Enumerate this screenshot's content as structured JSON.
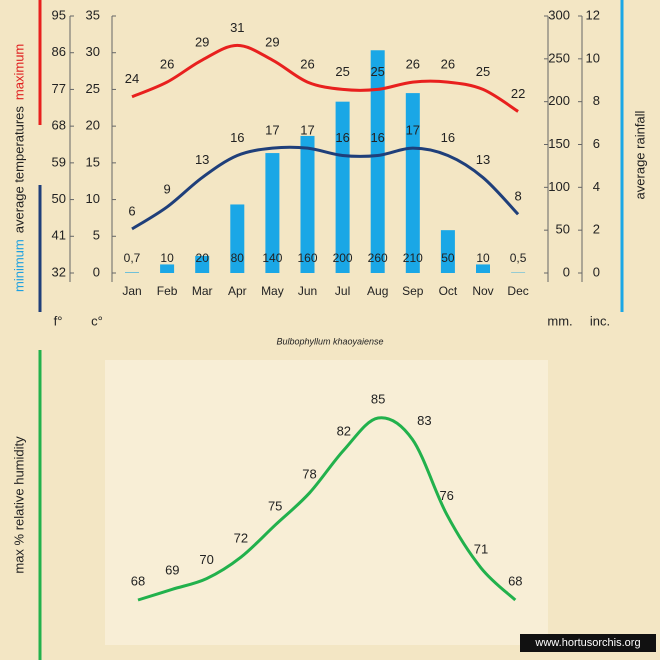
{
  "chart_data": [
    {
      "type": "combo",
      "title": "Bulbophyllum khaoyaiense",
      "categories": [
        "Jan",
        "Feb",
        "Mar",
        "Apr",
        "May",
        "Jun",
        "Jul",
        "Aug",
        "Sep",
        "Oct",
        "Nov",
        "Dec"
      ],
      "ylabel_parts": [
        {
          "text": "minimum",
          "color": "#1ea0e0"
        },
        {
          "text": "average temperatures",
          "color": "#222222"
        },
        {
          "text": "maximum",
          "color": "#e02020"
        }
      ],
      "y2label": "average rainfall",
      "y_unit": "c°",
      "y_alt_unit": "f°",
      "y2_unit": "mm.",
      "y2_alt_unit": "inc.",
      "ylim": [
        0,
        35
      ],
      "yticks": [
        0,
        5,
        10,
        15,
        20,
        25,
        30,
        35
      ],
      "ylim_alt": [
        32,
        95
      ],
      "yticks_alt": [
        32,
        41,
        50,
        59,
        68,
        77,
        86,
        95
      ],
      "y2lim": [
        0,
        300
      ],
      "y2ticks": [
        0,
        50,
        100,
        150,
        200,
        250,
        300
      ],
      "y2lim_alt": [
        0,
        12
      ],
      "y2ticks_alt": [
        0,
        2,
        4,
        6,
        8,
        10,
        12
      ],
      "series": [
        {
          "name": "average rainfall",
          "type": "bar",
          "axis": "y2",
          "color": "#1aa7e6",
          "values": [
            0.7,
            10,
            20,
            80,
            140,
            160,
            200,
            260,
            210,
            50,
            10,
            0.5
          ],
          "value_labels": [
            "0,7",
            "10",
            "20",
            "80",
            "140",
            "160",
            "200",
            "260",
            "210",
            "50",
            "10",
            "0,5"
          ]
        },
        {
          "name": "maximum",
          "type": "line",
          "color": "#e8201e",
          "values": [
            24,
            26,
            29,
            31,
            29,
            26,
            25,
            25,
            26,
            26,
            25,
            22
          ]
        },
        {
          "name": "minimum",
          "type": "line",
          "color": "#1f3f7a",
          "values": [
            6,
            9,
            13,
            16,
            17,
            17,
            16,
            16,
            17,
            16,
            13,
            8
          ]
        }
      ]
    },
    {
      "type": "line",
      "ylabel": "max % relative humidity",
      "color": "#22b14c",
      "values": [
        68,
        69,
        70,
        72,
        75,
        78,
        82,
        85,
        83,
        76,
        71,
        68
      ]
    }
  ],
  "source": "www.hortusorchis.org"
}
